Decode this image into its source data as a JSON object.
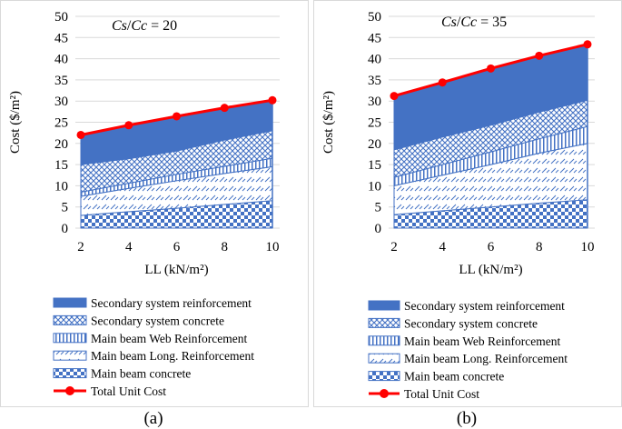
{
  "chart_data": [
    {
      "type": "area",
      "title": "Cs/Cc = 20",
      "xlabel": "LL (kN/m²)",
      "ylabel": "Cost ($/m²)",
      "x": [
        2,
        4,
        6,
        8,
        10
      ],
      "xlim": [
        2,
        10
      ],
      "ylim": [
        0,
        50
      ],
      "yticks": [
        "0",
        "5",
        "10",
        "15",
        "20",
        "25",
        "30",
        "35",
        "40",
        "45",
        "50"
      ],
      "xticks": [
        "2",
        "4",
        "6",
        "8",
        "10"
      ],
      "grid": true,
      "legend_position": "bottom",
      "stacked_area_series": [
        {
          "name": "Main beam concrete",
          "values": [
            3.0,
            3.9,
            4.7,
            5.6,
            6.5
          ]
        },
        {
          "name": "Main beam Long. Reinforcement",
          "values": [
            4.5,
            5.5,
            6.5,
            7.3,
            8.0
          ]
        },
        {
          "name": "Main beam Web Reinforcement",
          "values": [
            1.0,
            1.2,
            1.5,
            1.7,
            2.0
          ]
        },
        {
          "name": "Secondary system concrete",
          "values": [
            6.5,
            5.8,
            5.5,
            6.2,
            6.5
          ]
        },
        {
          "name": "Secondary system reinforcement",
          "values": [
            7.0,
            7.9,
            8.4,
            7.7,
            7.2
          ]
        }
      ],
      "line_series": {
        "name": "Total Unit Cost",
        "values": [
          22.0,
          24.3,
          26.4,
          28.4,
          30.2
        ]
      }
    },
    {
      "type": "area",
      "title": "Cs/Cc = 35",
      "xlabel": "LL (kN/m²)",
      "ylabel": "Cost ($/m²)",
      "x": [
        2,
        4,
        6,
        8,
        10
      ],
      "xlim": [
        2,
        10
      ],
      "ylim": [
        0,
        50
      ],
      "yticks": [
        "0",
        "5",
        "10",
        "15",
        "20",
        "25",
        "30",
        "35",
        "40",
        "45",
        "50"
      ],
      "xticks": [
        "2",
        "4",
        "6",
        "8",
        "10"
      ],
      "grid": true,
      "legend_position": "bottom",
      "stacked_area_series": [
        {
          "name": "Main beam concrete",
          "values": [
            3.2,
            4.1,
            5.0,
            5.9,
            6.7
          ]
        },
        {
          "name": "Main beam Long. Reinforcement",
          "values": [
            6.8,
            8.4,
            10.0,
            11.8,
            13.3
          ]
        },
        {
          "name": "Main beam Web Reinforcement",
          "values": [
            2.0,
            2.5,
            3.0,
            3.4,
            4.0
          ]
        },
        {
          "name": "Secondary system concrete",
          "values": [
            6.5,
            6.5,
            6.3,
            6.3,
            6.2
          ]
        },
        {
          "name": "Secondary system reinforcement",
          "values": [
            12.7,
            12.9,
            13.4,
            13.3,
            13.2
          ]
        }
      ],
      "line_series": {
        "name": "Total Unit Cost",
        "values": [
          31.2,
          34.4,
          37.7,
          40.7,
          43.4
        ]
      }
    }
  ],
  "legend": {
    "items": [
      "Secondary system reinforcement",
      "Secondary system concrete",
      "Main beam Web Reinforcement",
      "Main beam Long. Reinforcement",
      "Main beam concrete",
      "Total Unit Cost"
    ]
  },
  "captions": {
    "a": "(a)",
    "b": "(b)"
  },
  "colors": {
    "secondary_reinforcement": "#4472c4",
    "pattern_blue": "#4472c4",
    "total_line": "#ff0000",
    "grid": "#d9d9d9"
  }
}
